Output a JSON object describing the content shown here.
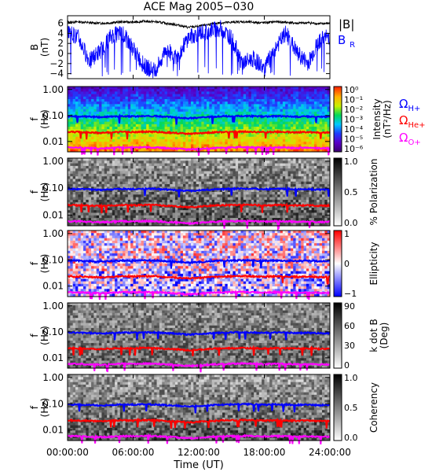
{
  "chart_data": {
    "type": "line",
    "title": "ACE Mag 2005−030",
    "xlabel": "Time (UT)",
    "xlim": [
      "00:00:00",
      "24:00:00"
    ],
    "x_tick_labels": [
      "00:00:00",
      "06:00:00",
      "12:00:00",
      "18:00:00",
      "24:00:00"
    ],
    "panels": [
      {
        "id": "bfield",
        "ylabel": "B\n(nT)",
        "ylim": [
          -5,
          7.5
        ],
        "y_ticks": [
          -4,
          -2,
          0,
          2,
          4,
          6
        ],
        "y_tick_labels": [
          "−4",
          "−2",
          "0",
          "2",
          "4",
          "6"
        ],
        "legend": [
          "|B|",
          "B_R"
        ],
        "series": [
          {
            "name": "|B|",
            "color": "#000000",
            "x_hours": [
              0,
              1,
              2,
              3,
              4,
              5,
              6,
              7,
              8,
              9,
              10,
              11,
              12,
              13,
              14,
              15,
              16,
              17,
              18,
              19,
              20,
              21,
              22,
              23,
              24
            ],
            "values": [
              6.2,
              6.3,
              6.1,
              6.0,
              6.1,
              6.3,
              6.2,
              6.4,
              6.3,
              6.0,
              5.7,
              5.2,
              5.4,
              5.8,
              6.1,
              6.2,
              6.3,
              6.2,
              6.1,
              6.3,
              6.2,
              6.0,
              6.1,
              5.9,
              6.0
            ]
          },
          {
            "name": "B_R",
            "color": "#0000ff",
            "x_hours": [
              0,
              1,
              2,
              3,
              4,
              5,
              6,
              7,
              8,
              9,
              10,
              11,
              12,
              13,
              14,
              15,
              16,
              17,
              18,
              19,
              20,
              21,
              22,
              23,
              24
            ],
            "values": [
              4.5,
              3.0,
              -1.5,
              0.5,
              3.5,
              4.0,
              1.0,
              -2.5,
              -3.5,
              1.0,
              -1.0,
              3.0,
              4.0,
              4.5,
              5.0,
              3.0,
              -2.0,
              -1.0,
              -3.0,
              1.0,
              4.0,
              0.0,
              -2.0,
              2.5,
              3.5
            ]
          }
        ]
      },
      {
        "id": "intensity",
        "type": "heatmap",
        "ylabel": "f\n(Hz)",
        "colorbar_label": "Intensity\n(nT²/Hz)",
        "colorbar_ticks": [
          "10⁰",
          "10⁻¹",
          "10⁻²",
          "10⁻³",
          "10⁻⁴",
          "10⁻⁵",
          "10⁻⁶"
        ],
        "colorscale": "rainbow",
        "legend": [
          "ΩH+",
          "ΩHe+",
          "ΩO+"
        ]
      },
      {
        "id": "polarization",
        "type": "heatmap",
        "ylabel": "f\n(Hz)",
        "colorbar_label": "% Polarization",
        "colorbar_ticks": [
          "1.0",
          "0.5",
          "0.0"
        ],
        "colorscale": "gray"
      },
      {
        "id": "ellipticity",
        "type": "heatmap",
        "ylabel": "f\n(Hz)",
        "colorbar_label": "Ellipticity",
        "colorbar_ticks": [
          "1",
          "0",
          "−1"
        ],
        "colorscale": "red-white-blue"
      },
      {
        "id": "kdotb",
        "type": "heatmap",
        "ylabel": "f\n(Hz)",
        "colorbar_label": "k dot B\n(Deg)",
        "colorbar_ticks": [
          "90",
          "60",
          "30",
          "0"
        ],
        "colorscale": "gray"
      },
      {
        "id": "coherency",
        "type": "heatmap",
        "ylabel": "f\n(Hz)",
        "colorbar_label": "Coherency",
        "colorbar_ticks": [
          "1.0",
          "0.5",
          "0.0"
        ],
        "colorscale": "gray"
      }
    ],
    "freq_axis": {
      "scale": "log",
      "ylim": [
        0.004,
        1.3
      ],
      "ticks": [
        1.0,
        0.1,
        0.01
      ],
      "tick_labels": [
        "1.00",
        "0.10",
        "0.01"
      ]
    },
    "gyrofrequency_lines": {
      "unit": "Hz",
      "x_hours": [
        0,
        1,
        2,
        3,
        4,
        5,
        6,
        7,
        8,
        9,
        10,
        11,
        12,
        13,
        14,
        15,
        16,
        17,
        18,
        19,
        20,
        21,
        22,
        23,
        24
      ],
      "series": [
        {
          "name": "ΩH+",
          "color": "#0000ff",
          "values": [
            0.094,
            0.092,
            0.09,
            0.086,
            0.09,
            0.094,
            0.092,
            0.095,
            0.094,
            0.089,
            0.085,
            0.078,
            0.082,
            0.088,
            0.092,
            0.094,
            0.096,
            0.094,
            0.091,
            0.094,
            0.093,
            0.09,
            0.092,
            0.088,
            0.09
          ]
        },
        {
          "name": "ΩHe+",
          "color": "#ff0000",
          "values": [
            0.0235,
            0.023,
            0.0225,
            0.0215,
            0.0225,
            0.0235,
            0.023,
            0.0238,
            0.0235,
            0.0222,
            0.0212,
            0.0195,
            0.0205,
            0.022,
            0.023,
            0.0235,
            0.024,
            0.0235,
            0.0228,
            0.0235,
            0.0232,
            0.0225,
            0.023,
            0.022,
            0.0225
          ]
        },
        {
          "name": "ΩO+",
          "color": "#ff00ff",
          "values": [
            0.0059,
            0.0058,
            0.0056,
            0.0054,
            0.0056,
            0.0059,
            0.0058,
            0.006,
            0.0059,
            0.0056,
            0.0053,
            0.0049,
            0.0051,
            0.0055,
            0.0058,
            0.0059,
            0.006,
            0.0059,
            0.0057,
            0.0059,
            0.0058,
            0.0056,
            0.0058,
            0.0055,
            0.0056
          ]
        }
      ]
    }
  }
}
